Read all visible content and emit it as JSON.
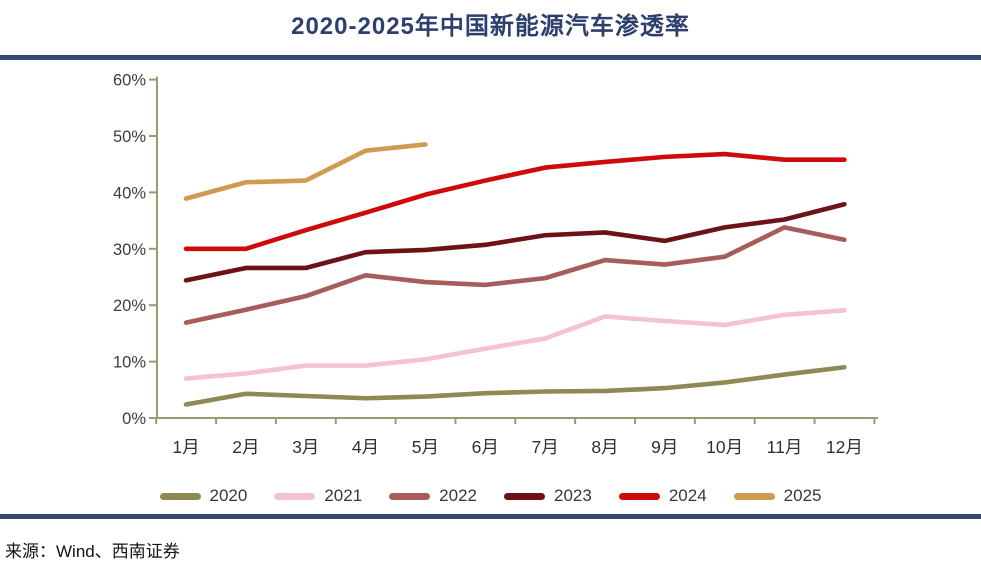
{
  "header": {
    "title": "2020-2025年中国新能源汽车渗透率"
  },
  "footer": {
    "source": "来源：Wind、西南证券"
  },
  "theme": {
    "title_color": "#2c3f6f",
    "rule_color": "#35496f",
    "axis_color": "#9a9a73",
    "ytick_label_color": "#3d3d3d",
    "xtick_label_color": "#303030",
    "legend_label_color": "#383838",
    "background": "#ffffff"
  },
  "chart_data": {
    "type": "line",
    "title": "2020-2025年中国新能源汽车渗透率",
    "categories": [
      "1月",
      "2月",
      "3月",
      "4月",
      "5月",
      "6月",
      "7月",
      "8月",
      "9月",
      "10月",
      "11月",
      "12月"
    ],
    "series": [
      {
        "name": "2020",
        "color": "#8e8a54",
        "values": [
          2.4,
          4.3,
          3.9,
          3.5,
          3.8,
          4.4,
          4.7,
          4.8,
          5.3,
          6.3,
          7.7,
          9.0
        ]
      },
      {
        "name": "2021",
        "color": "#f5c3ce",
        "values": [
          7.0,
          7.9,
          9.3,
          9.3,
          10.4,
          12.3,
          14.1,
          18.0,
          17.2,
          16.5,
          18.3,
          19.1
        ]
      },
      {
        "name": "2022",
        "color": "#a85c5c",
        "values": [
          16.9,
          19.2,
          21.6,
          25.3,
          24.1,
          23.6,
          24.8,
          28.0,
          27.2,
          28.6,
          33.8,
          31.6
        ]
      },
      {
        "name": "2023",
        "color": "#6e1217",
        "values": [
          24.4,
          26.6,
          26.6,
          29.4,
          29.8,
          30.7,
          32.4,
          32.9,
          31.4,
          33.8,
          35.2,
          37.9
        ]
      },
      {
        "name": "2024",
        "color": "#cf0a0d",
        "values": [
          30.0,
          30.0,
          33.3,
          36.4,
          39.6,
          42.1,
          44.4,
          45.4,
          46.3,
          46.8,
          45.8,
          45.8
        ]
      },
      {
        "name": "2025",
        "color": "#cf9b51",
        "values": [
          38.9,
          41.8,
          42.1,
          47.4,
          48.5
        ]
      }
    ],
    "xlabel": "",
    "ylabel": "",
    "ylim": [
      0,
      60
    ],
    "ytick_step": 10,
    "ytick_suffix": "%",
    "grid": false,
    "legend_position": "bottom"
  }
}
